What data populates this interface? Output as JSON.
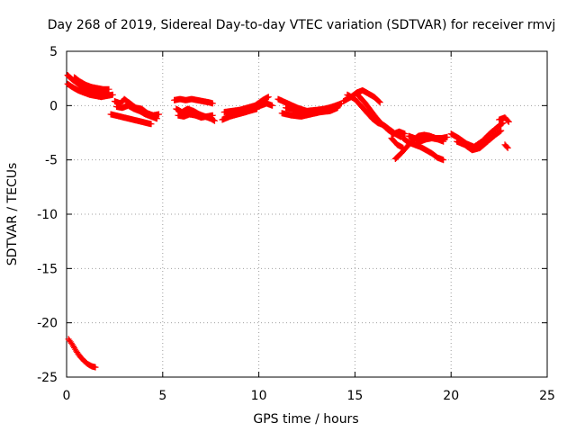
{
  "chart_data": {
    "type": "scatter",
    "title": "Day 268 of 2019, Sidereal Day-to-day VTEC variation (SDTVAR) for receiver rmvj",
    "xlabel": "GPS time / hours",
    "ylabel": "SDTVAR / TECUs",
    "xlim": [
      0,
      25
    ],
    "ylim": [
      -25,
      5
    ],
    "xticks": [
      0,
      5,
      10,
      15,
      20,
      25
    ],
    "xtick_labels": [
      "0",
      "5",
      "10",
      "15",
      "20",
      "25"
    ],
    "yticks": [
      5,
      0,
      -5,
      -10,
      -15,
      -20,
      -25
    ],
    "ytick_labels": [
      "5",
      "0",
      "-5",
      "-10",
      "-15",
      "-20",
      "-25"
    ],
    "grid": true,
    "marker": "plus",
    "series": [
      {
        "name": "SDTVAR",
        "color": "#ff0000",
        "segments": [
          {
            "x": [
              0.05,
              0.3,
              0.6,
              0.9,
              1.2,
              1.5,
              1.8,
              2.1
            ],
            "y": [
              2.8,
              2.4,
              2.0,
              1.6,
              1.4,
              1.2,
              1.1,
              1.2
            ]
          },
          {
            "x": [
              0.05,
              0.3,
              0.6,
              0.9,
              1.2,
              1.5,
              1.8,
              2.1,
              2.4
            ],
            "y": [
              2.0,
              1.7,
              1.4,
              1.2,
              1.0,
              0.9,
              0.8,
              0.9,
              1.0
            ]
          },
          {
            "x": [
              0.4,
              0.7,
              1.0,
              1.3,
              1.6,
              1.9,
              2.2
            ],
            "y": [
              2.6,
              2.2,
              1.9,
              1.7,
              1.6,
              1.5,
              1.5
            ]
          },
          {
            "x": [
              2.5,
              2.8,
              3.0,
              3.3,
              3.6,
              3.9,
              4.2,
              4.5,
              4.8
            ],
            "y": [
              0.4,
              0.2,
              0.6,
              0.2,
              -0.2,
              -0.3,
              -0.7,
              -0.9,
              -0.8
            ]
          },
          {
            "x": [
              2.6,
              2.9,
              3.2,
              3.5,
              3.8,
              4.1,
              4.4,
              4.7
            ],
            "y": [
              -0.1,
              -0.2,
              0.0,
              -0.3,
              -0.5,
              -0.8,
              -1.0,
              -1.2
            ]
          },
          {
            "x": [
              2.3,
              4.4
            ],
            "y": [
              -0.8,
              -1.7
            ]
          },
          {
            "x": [
              5.6,
              5.9,
              6.2,
              6.5,
              6.8,
              7.1,
              7.4,
              7.6
            ],
            "y": [
              0.5,
              0.6,
              0.5,
              0.6,
              0.5,
              0.4,
              0.3,
              0.2
            ]
          },
          {
            "x": [
              5.7,
              6.0,
              6.3,
              6.6,
              6.9,
              7.2,
              7.5,
              7.7
            ],
            "y": [
              -0.3,
              -0.6,
              -0.3,
              -0.5,
              -0.8,
              -1.0,
              -1.2,
              -1.4
            ]
          },
          {
            "x": [
              5.8,
              6.1,
              6.4,
              6.7,
              7.0,
              7.3,
              7.6
            ],
            "y": [
              -0.9,
              -1.0,
              -0.8,
              -0.9,
              -1.1,
              -1.0,
              -0.9
            ]
          },
          {
            "x": [
              8.1,
              8.5,
              8.9,
              9.3,
              9.7,
              10.1,
              10.4,
              10.7
            ],
            "y": [
              -1.3,
              -1.0,
              -0.8,
              -0.6,
              -0.3,
              0.0,
              0.2,
              0.0
            ]
          },
          {
            "x": [
              8.2,
              8.6,
              9.0,
              9.4,
              9.8,
              10.2,
              10.5
            ],
            "y": [
              -0.6,
              -0.5,
              -0.4,
              -0.2,
              0.0,
              0.5,
              0.8
            ]
          },
          {
            "x": [
              8.3,
              8.7,
              9.1,
              9.5,
              9.9
            ],
            "y": [
              -1.0,
              -0.8,
              -0.7,
              -0.5,
              -0.3
            ]
          },
          {
            "x": [
              11.0,
              11.5,
              12.0,
              12.5,
              13.0,
              13.5,
              14.0,
              14.3
            ],
            "y": [
              0.6,
              0.2,
              -0.2,
              -0.5,
              -0.4,
              -0.3,
              0.0,
              0.2
            ]
          },
          {
            "x": [
              11.2,
              11.7,
              12.2,
              12.7,
              13.2,
              13.7,
              14.1
            ],
            "y": [
              -0.7,
              -0.9,
              -1.0,
              -0.8,
              -0.6,
              -0.5,
              -0.2
            ]
          },
          {
            "x": [
              11.4,
              11.9,
              12.4,
              12.9,
              13.4,
              13.9
            ],
            "y": [
              -0.2,
              -0.4,
              -0.6,
              -0.5,
              -0.3,
              -0.1
            ]
          },
          {
            "x": [
              14.4,
              14.8,
              15.1,
              15.4,
              15.7,
              16.0,
              16.3
            ],
            "y": [
              0.4,
              0.8,
              1.2,
              1.4,
              1.1,
              0.8,
              0.3
            ]
          },
          {
            "x": [
              14.6,
              15.0,
              15.3,
              15.6,
              15.9,
              16.2,
              16.5,
              16.8,
              17.1,
              17.4
            ],
            "y": [
              1.0,
              0.6,
              0.0,
              -0.6,
              -1.2,
              -1.6,
              -1.8,
              -2.2,
              -2.6,
              -2.9
            ]
          },
          {
            "x": [
              15.2,
              15.5,
              15.8,
              16.1,
              16.4,
              16.7,
              17.0,
              17.3,
              17.6
            ],
            "y": [
              0.9,
              0.3,
              -0.4,
              -1.1,
              -1.7,
              -2.2,
              -2.6,
              -2.4,
              -2.6
            ]
          },
          {
            "x": [
              17.1,
              17.4,
              17.7,
              18.0,
              18.3,
              18.6,
              18.9,
              19.2,
              19.5,
              19.8
            ],
            "y": [
              -4.9,
              -4.4,
              -3.8,
              -3.2,
              -2.8,
              -2.7,
              -2.8,
              -3.0,
              -3.0,
              -2.9
            ]
          },
          {
            "x": [
              17.5,
              17.8,
              18.1,
              18.4,
              18.7,
              19.0,
              19.3,
              19.6
            ],
            "y": [
              -3.0,
              -3.4,
              -3.6,
              -3.8,
              -4.1,
              -4.4,
              -4.8,
              -5.0
            ]
          },
          {
            "x": [
              17.8,
              18.1,
              18.4,
              18.7,
              19.0,
              19.3,
              19.6
            ],
            "y": [
              -2.8,
              -3.0,
              -3.3,
              -3.1,
              -3.0,
              -3.1,
              -3.3
            ]
          },
          {
            "x": [
              16.9,
              17.2,
              17.5
            ],
            "y": [
              -3.0,
              -3.6,
              -3.9
            ]
          },
          {
            "x": [
              20.0,
              20.4,
              20.8,
              21.2,
              21.6,
              22.0,
              22.4,
              22.7
            ],
            "y": [
              -2.6,
              -3.0,
              -3.5,
              -3.8,
              -3.3,
              -2.6,
              -2.0,
              -1.6
            ]
          },
          {
            "x": [
              20.3,
              20.7,
              21.1,
              21.5,
              21.9,
              22.3,
              22.6
            ],
            "y": [
              -3.3,
              -3.6,
              -4.1,
              -3.9,
              -3.3,
              -2.7,
              -2.3
            ]
          },
          {
            "x": [
              22.5,
              22.8,
              23.0
            ],
            "y": [
              -1.3,
              -1.1,
              -1.5
            ]
          },
          {
            "x": [
              22.8,
              22.95
            ],
            "y": [
              -3.6,
              -3.9
            ]
          },
          {
            "x": [
              0.1,
              0.3,
              0.5,
              0.7,
              0.9,
              1.1,
              1.3,
              1.5
            ],
            "y": [
              -21.5,
              -22.0,
              -22.6,
              -23.1,
              -23.5,
              -23.8,
              -24.0,
              -24.1
            ]
          }
        ]
      }
    ]
  }
}
